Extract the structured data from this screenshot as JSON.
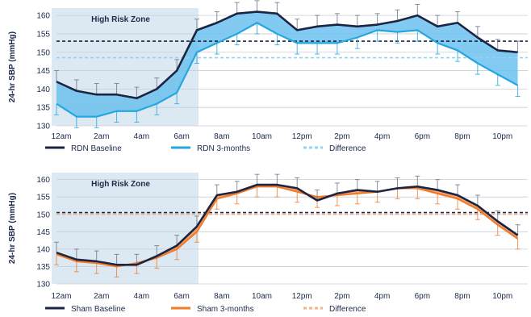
{
  "chart_data": [
    {
      "type": "line",
      "ylabel": "24-hr SBP (mmHg)",
      "ylim": [
        130,
        162
      ],
      "yticks": [
        "130",
        "135",
        "140",
        "145",
        "150",
        "155",
        "160"
      ],
      "xtick_labels": [
        "12am",
        "2am",
        "4am",
        "6am",
        "8am",
        "10am",
        "12pm",
        "2pm",
        "4pm",
        "6pm",
        "8pm",
        "10pm"
      ],
      "zone_label": "High Risk Zone",
      "zone_range_hours": [
        0,
        7
      ],
      "x_hours": [
        0,
        1,
        2,
        3,
        4,
        5,
        6,
        7,
        8,
        9,
        10,
        11,
        12,
        13,
        14,
        15,
        16,
        17,
        18,
        19,
        20,
        21,
        22,
        23
      ],
      "series": [
        {
          "name": "RDN Baseline",
          "color": "#1b2440",
          "values": [
            142,
            139.5,
            138.5,
            138.5,
            137.5,
            140,
            145,
            156,
            158,
            160.5,
            161,
            160.5,
            156,
            157,
            157.5,
            157,
            157.5,
            158.5,
            160,
            157,
            158,
            154,
            150.5,
            150
          ]
        },
        {
          "name": "RDN 3-months",
          "color": "#22a7e0",
          "values": [
            136,
            132.5,
            132.5,
            134,
            134,
            136,
            139,
            150,
            152.5,
            155,
            158,
            155,
            152.5,
            152.5,
            152.5,
            154,
            156,
            155.5,
            156,
            152.5,
            150.5,
            147,
            144,
            141
          ]
        }
      ],
      "reference_lines": [
        {
          "name": "RDN Baseline",
          "color": "#1b2440",
          "value": 153
        },
        {
          "name": "Difference",
          "color": "#8fd3f2",
          "value": 148.5
        }
      ],
      "legend": [
        {
          "label": "RDN Baseline",
          "color": "#1b2440",
          "style": "solid"
        },
        {
          "label": "RDN 3-months",
          "color": "#22a7e0",
          "style": "solid"
        },
        {
          "label": "Difference",
          "color": "#8fd3f2",
          "style": "dashed"
        }
      ],
      "fill_color": "#6cc1ee",
      "zone_color": "#dde9f2"
    },
    {
      "type": "line",
      "ylabel": "24-hr SBP (mmHg)",
      "ylim": [
        130,
        162
      ],
      "yticks": [
        "130",
        "135",
        "140",
        "145",
        "150",
        "155",
        "160"
      ],
      "xtick_labels": [
        "12am",
        "2am",
        "4am",
        "6am",
        "8am",
        "10am",
        "12pm",
        "2pm",
        "4pm",
        "6pm",
        "8pm",
        "10pm"
      ],
      "zone_label": "High Risk Zone",
      "zone_range_hours": [
        0,
        7
      ],
      "x_hours": [
        0,
        1,
        2,
        3,
        4,
        5,
        6,
        7,
        8,
        9,
        10,
        11,
        12,
        13,
        14,
        15,
        16,
        17,
        18,
        19,
        20,
        21,
        22,
        23
      ],
      "series": [
        {
          "name": "Sham Baseline",
          "color": "#1b2440",
          "values": [
            139,
            137,
            136.5,
            135.5,
            135.5,
            138,
            141,
            146.5,
            155.5,
            156.5,
            158.5,
            158.5,
            157.5,
            154,
            156,
            157,
            156.5,
            157.5,
            158,
            157,
            155.5,
            152.5,
            148,
            144
          ]
        },
        {
          "name": "Sham 3-months",
          "color": "#f07a2a",
          "values": [
            138.5,
            136.5,
            136,
            135,
            136,
            137.5,
            140,
            145,
            154.5,
            156,
            158,
            158,
            156.5,
            155,
            155.5,
            156,
            156.5,
            157.5,
            157.5,
            156,
            154.5,
            151.5,
            147,
            143
          ]
        }
      ],
      "reference_lines": [
        {
          "name": "Sham Baseline",
          "color": "#1b2440",
          "value": 150.5
        },
        {
          "name": "Difference",
          "color": "#f7b08a",
          "value": 150
        }
      ],
      "legend": [
        {
          "label": "Sham Baseline",
          "color": "#1b2440",
          "style": "solid"
        },
        {
          "label": "Sham 3-months",
          "color": "#f07a2a",
          "style": "solid"
        },
        {
          "label": "Difference",
          "color": "#f7b08a",
          "style": "dashed"
        }
      ],
      "fill_color": "#f4955a",
      "zone_color": "#dde9f2"
    }
  ]
}
